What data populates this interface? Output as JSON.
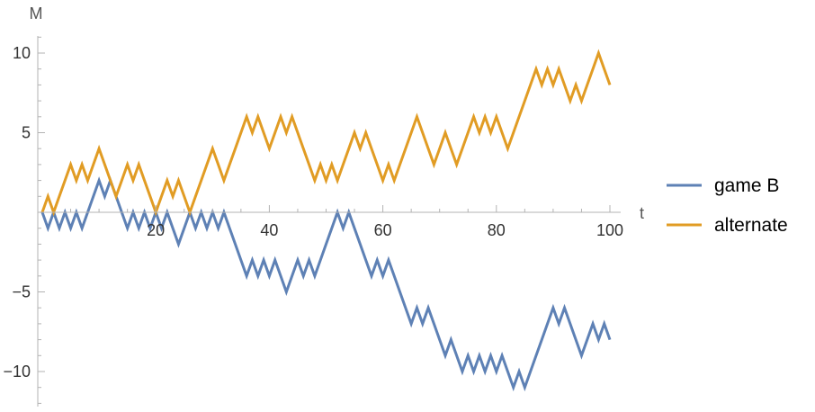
{
  "chart_data": {
    "type": "line",
    "xlabel": "t",
    "ylabel": "M",
    "xlim": [
      0,
      101
    ],
    "ylim": [
      -12,
      11
    ],
    "x_ticks": [
      20,
      40,
      60,
      80,
      100
    ],
    "y_ticks": [
      -10,
      -5,
      5,
      10
    ],
    "grid": false,
    "legend_position": "right",
    "series": [
      {
        "name": "game B",
        "color": "#5e81b5",
        "values": [
          0,
          -1,
          0,
          -1,
          0,
          -1,
          0,
          -1,
          0,
          1,
          2,
          1,
          2,
          1,
          0,
          -1,
          0,
          -1,
          0,
          -1,
          0,
          -1,
          0,
          -1,
          -2,
          -1,
          0,
          -1,
          0,
          -1,
          0,
          -1,
          0,
          -1,
          -2,
          -3,
          -4,
          -3,
          -4,
          -3,
          -4,
          -3,
          -4,
          -5,
          -4,
          -3,
          -4,
          -3,
          -4,
          -3,
          -2,
          -1,
          0,
          -1,
          0,
          -1,
          -2,
          -3,
          -4,
          -3,
          -4,
          -3,
          -4,
          -5,
          -6,
          -7,
          -6,
          -7,
          -6,
          -7,
          -8,
          -9,
          -8,
          -9,
          -10,
          -9,
          -10,
          -9,
          -10,
          -9,
          -10,
          -9,
          -10,
          -11,
          -10,
          -11,
          -10,
          -9,
          -8,
          -7,
          -6,
          -7,
          -6,
          -7,
          -8,
          -9,
          -8,
          -7,
          -8,
          -7,
          -8
        ]
      },
      {
        "name": "alternate",
        "color": "#e19c24",
        "values": [
          0,
          1,
          0,
          1,
          2,
          3,
          2,
          3,
          2,
          3,
          4,
          3,
          2,
          1,
          2,
          3,
          2,
          3,
          2,
          1,
          0,
          1,
          2,
          1,
          2,
          1,
          0,
          1,
          2,
          3,
          4,
          3,
          2,
          3,
          4,
          5,
          6,
          5,
          6,
          5,
          4,
          5,
          6,
          5,
          6,
          5,
          4,
          3,
          2,
          3,
          2,
          3,
          2,
          3,
          4,
          5,
          4,
          5,
          4,
          3,
          2,
          3,
          2,
          3,
          4,
          5,
          6,
          5,
          4,
          3,
          4,
          5,
          4,
          3,
          4,
          5,
          6,
          5,
          6,
          5,
          6,
          5,
          4,
          5,
          6,
          7,
          8,
          9,
          8,
          9,
          8,
          9,
          8,
          7,
          8,
          7,
          8,
          9,
          10,
          9,
          8
        ]
      }
    ]
  }
}
